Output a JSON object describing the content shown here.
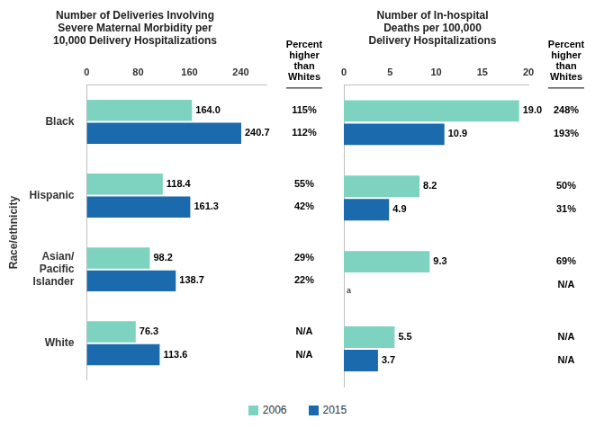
{
  "chart_data": [
    {
      "type": "bar",
      "title": "Number of Deliveries Involving\nSevere Maternal Morbidity per\n10,000 Delivery Hospitalizations",
      "ylabel": "Race/ethnicity",
      "orientation": "horizontal",
      "categories": [
        "Black",
        "Hispanic",
        "Asian/\nPacific\nIslander",
        "White"
      ],
      "percent_title": "Percent\nhigher\nthan\nWhites",
      "series": [
        {
          "name": "2006",
          "color": "#7dd3c0",
          "values": [
            164.0,
            118.4,
            98.2,
            76.3
          ],
          "value_labels": [
            "164.0",
            "118.4",
            "98.2",
            "76.3"
          ],
          "percent_labels": [
            "115%",
            "55%",
            "29%",
            "N/A"
          ]
        },
        {
          "name": "2015",
          "color": "#1b6aad",
          "values": [
            240.7,
            161.3,
            138.7,
            113.6
          ],
          "value_labels": [
            "240.7",
            "161.3",
            "138.7",
            "113.6"
          ],
          "percent_labels": [
            "112%",
            "42%",
            "22%",
            "N/A"
          ]
        }
      ],
      "xlim": [
        0,
        280
      ],
      "xticks": [
        0,
        80,
        160,
        240
      ],
      "grid": false,
      "data_labels": true,
      "legend": "bottom"
    },
    {
      "type": "bar",
      "title": "Number of In-hospital\nDeaths per 100,000\nDelivery Hospitalizations",
      "orientation": "horizontal",
      "categories": [
        "Black",
        "Hispanic",
        "Asian/\nPacific\nIslander",
        "White"
      ],
      "percent_title": "Percent\nhigher\nthan\nWhites",
      "series": [
        {
          "name": "2006",
          "color": "#7dd3c0",
          "values": [
            19.0,
            8.2,
            9.3,
            5.5
          ],
          "value_labels": [
            "19.0",
            "8.2",
            "9.3",
            "5.5"
          ],
          "percent_labels": [
            "248%",
            "50%",
            "69%",
            "N/A"
          ]
        },
        {
          "name": "2015",
          "color": "#1b6aad",
          "values": [
            10.9,
            4.9,
            null,
            3.7
          ],
          "value_labels": [
            "10.9",
            "4.9",
            "a",
            "3.7"
          ],
          "percent_labels": [
            "193%",
            "31%",
            "N/A",
            "N/A"
          ]
        }
      ],
      "xlim": [
        0,
        20
      ],
      "xticks": [
        0,
        5,
        10,
        15,
        20
      ],
      "grid": false,
      "data_labels": true,
      "tick_labels": "x",
      "legend": "bottom"
    }
  ]
}
